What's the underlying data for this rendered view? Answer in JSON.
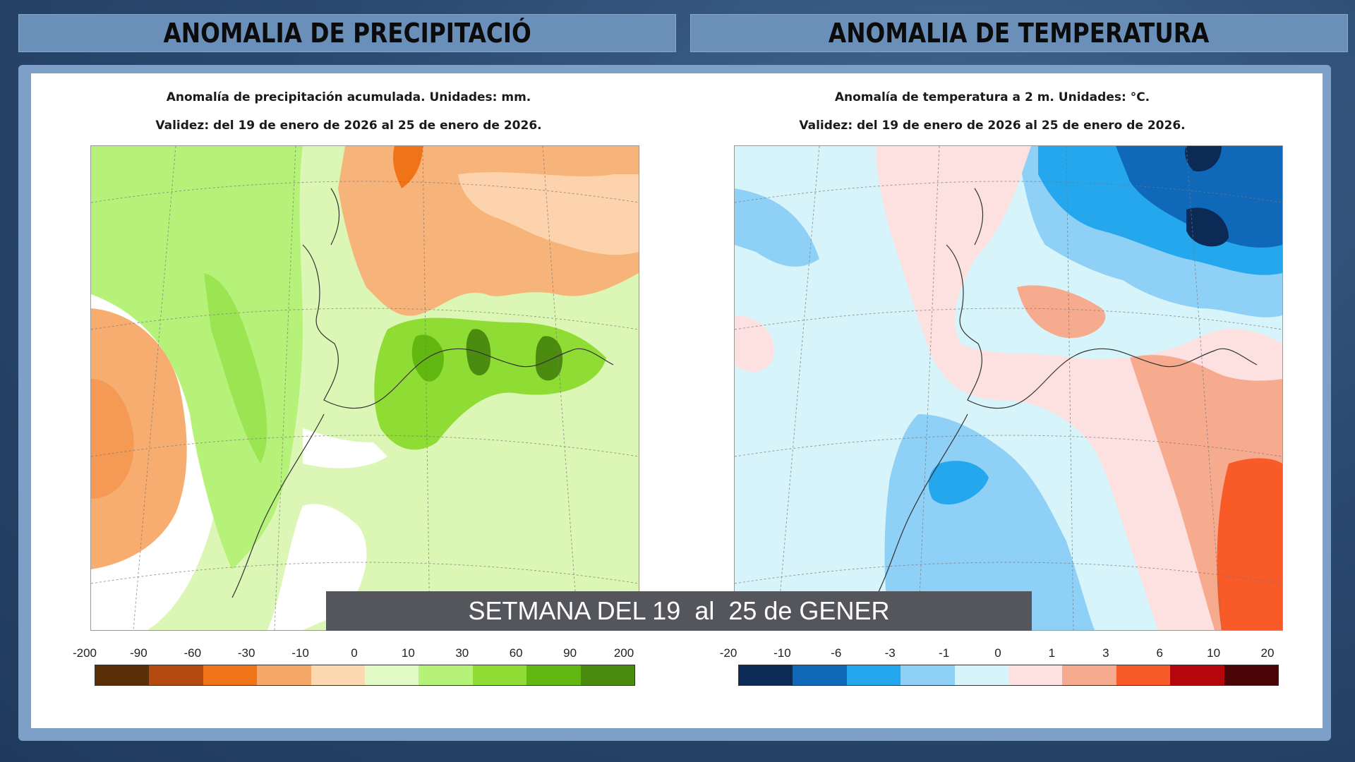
{
  "headers": {
    "left": "ANOMALIA DE PRECIPITACIÓ",
    "right": "ANOMALIA DE TEMPERATURA"
  },
  "precip_map": {
    "title": "Anomalía de precipitación acumulada. Unidades: mm.",
    "validity": "Validez: del 19 de enero de 2026 al 25 de enero de 2026.",
    "colorbar_ticks": [
      "-200",
      "-90",
      "-60",
      "-30",
      "-10",
      "0",
      "10",
      "30",
      "60",
      "90",
      "200"
    ],
    "colorbar_colors": [
      "#5a2f08",
      "#b54a10",
      "#f07317",
      "#f6a868",
      "#fdd9b2",
      "#e2fbc6",
      "#b6f27a",
      "#8fdc34",
      "#62b810",
      "#4a8b10"
    ]
  },
  "temp_map": {
    "title": "Anomalía de temperatura a 2 m. Unidades: °C.",
    "validity": "Validez: del 19 de enero de 2026 al 25 de enero de 2026.",
    "colorbar_ticks": [
      "-20",
      "-10",
      "-6",
      "-3",
      "-1",
      "0",
      "1",
      "3",
      "6",
      "10",
      "20"
    ],
    "colorbar_colors": [
      "#0b2a55",
      "#0f68b8",
      "#25a7ee",
      "#8fd0f6",
      "#d7f4fb",
      "#fde1e1",
      "#f7ab8e",
      "#f85a28",
      "#b5060c",
      "#4a0406"
    ]
  },
  "caption": "SETMANA DEL 19  al  25 de GENER"
}
